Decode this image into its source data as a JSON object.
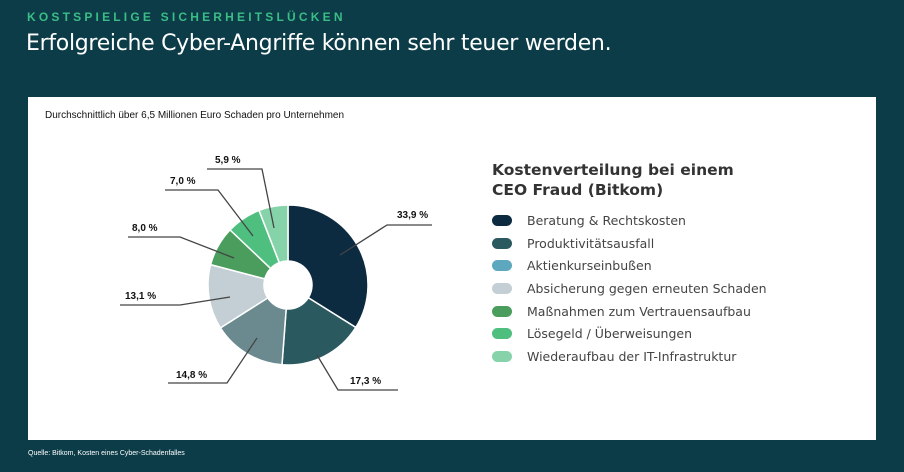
{
  "header": {
    "kicker": "KOSTSPIELIGE SICHERHEITSLÜCKEN",
    "title": "Erfolgreiche Cyber-Angriffe können sehr teuer werden."
  },
  "card": {
    "subtitle": "Durchschnittlich über 6,5 Millionen Euro Schaden pro Unternehmen"
  },
  "footer": {
    "source": "Quelle: Bitkom, Kosten eines Cyber-Schadenfalles"
  },
  "chart_data": {
    "type": "pie",
    "donut": true,
    "title": "Kostenverteilung bei einem CEO Fraud (Bitkom)",
    "legend_position": "right",
    "categories": [
      "Beratung & Rechtskosten",
      "Produktivitätsausfall",
      "Aktienkurseinbußen",
      "Absicherung gegen erneuten Schaden",
      "Maßnahmen zum Vertrauensaufbau",
      "Lösegeld / Überweisungen",
      "Wiederaufbau der IT-Infrastruktur"
    ],
    "values": [
      33.9,
      17.3,
      14.8,
      13.1,
      8.0,
      7.0,
      5.9
    ],
    "value_labels": [
      "33,9 %",
      "17,3 %",
      "14,8 %",
      "13,1 %",
      "8,0 %",
      "7,0 %",
      "5,9 %"
    ],
    "legend_colors": [
      "#0d2b40",
      "#2a5a60",
      "#5ea8bf",
      "#c3cfd4",
      "#4a9d5c",
      "#4fbf7f",
      "#86d3aa"
    ],
    "slice_colors": [
      "#0d2b40",
      "#2a5a60",
      "#6a8a8f",
      "#c3cfd4",
      "#4a9d5c",
      "#4fbf7f",
      "#86d3aa"
    ]
  }
}
